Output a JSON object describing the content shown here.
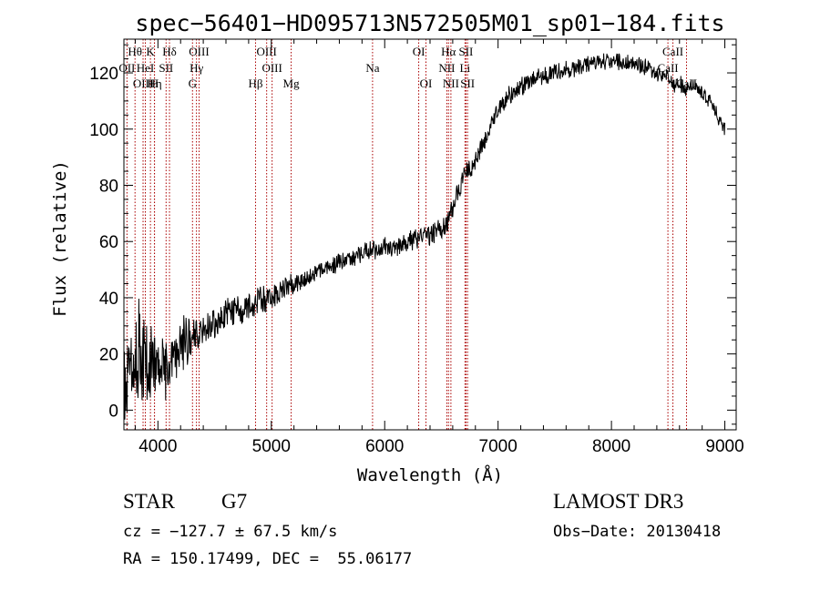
{
  "chart_data": {
    "type": "line",
    "title": "spec−56401−HD095713N572505M01_sp01−184.fits",
    "xlabel": "Wavelength (Å)",
    "ylabel": "Flux (relative)",
    "xlim": [
      3700,
      9100
    ],
    "ylim": [
      -7,
      132
    ],
    "xticks": [
      4000,
      5000,
      6000,
      7000,
      8000,
      9000
    ],
    "yticks": [
      0,
      20,
      40,
      60,
      80,
      100,
      120
    ],
    "grid": false,
    "line_color": "#000000",
    "marker_color": "#aa0000",
    "spectrum_anchors": {
      "wavelength": [
        3700,
        3800,
        3900,
        4000,
        4100,
        4200,
        4300,
        4400,
        4500,
        4600,
        4700,
        4800,
        4900,
        5000,
        5100,
        5200,
        5300,
        5400,
        5500,
        5600,
        5700,
        5800,
        5900,
        6000,
        6100,
        6200,
        6300,
        6400,
        6500,
        6550,
        6600,
        6650,
        6700,
        6750,
        6800,
        6850,
        6900,
        6950,
        7000,
        7100,
        7200,
        7300,
        7400,
        7500,
        7600,
        7700,
        7800,
        7900,
        8000,
        8100,
        8200,
        8300,
        8400,
        8500,
        8550,
        8600,
        8650,
        8700,
        8800,
        8900,
        8950,
        9000
      ],
      "flux": [
        12,
        22,
        18,
        15,
        16,
        22,
        26,
        30,
        32,
        34,
        35,
        37,
        39,
        40,
        42,
        45,
        47,
        49,
        51,
        53,
        54,
        56,
        57,
        58,
        58,
        60,
        61,
        63,
        64,
        67,
        72,
        78,
        83,
        86,
        89,
        93,
        97,
        102,
        107,
        112,
        115,
        117,
        119,
        120,
        121,
        122,
        123,
        124,
        124,
        124,
        123,
        122,
        120,
        119,
        115,
        117,
        113,
        116,
        113,
        108,
        103,
        100
      ]
    },
    "noise_amplitude": {
      "wavelength": [
        3700,
        3900,
        4100,
        4300,
        4600,
        5000,
        5500,
        6000,
        6500,
        6600,
        7000,
        8000,
        9000
      ],
      "amp": [
        14,
        15,
        10,
        8,
        5,
        4,
        3,
        3,
        4,
        3,
        3,
        2.5,
        2.5
      ]
    },
    "spectral_lines": [
      {
        "name": "Hθ",
        "wavelength": 3798,
        "row": 0
      },
      {
        "name": "OII",
        "wavelength": 3727,
        "row": 1
      },
      {
        "name": "OIII",
        "wavelength": 3869,
        "row": 2
      },
      {
        "name": "HeI",
        "wavelength": 3889,
        "row": 1
      },
      {
        "name": "K",
        "wavelength": 3934,
        "row": 0
      },
      {
        "name": "Hη",
        "wavelength": 3970,
        "row": 2
      },
      {
        "name": "SII",
        "wavelength": 4072,
        "row": 1
      },
      {
        "name": "H",
        "wavelength": 3969,
        "row": 2
      },
      {
        "name": "Hδ",
        "wavelength": 4102,
        "row": 0
      },
      {
        "name": "OIII",
        "wavelength": 4363,
        "row": 0
      },
      {
        "name": "Hγ",
        "wavelength": 4340,
        "row": 1
      },
      {
        "name": "G",
        "wavelength": 4305,
        "row": 2
      },
      {
        "name": "Hβ",
        "wavelength": 4861,
        "row": 2
      },
      {
        "name": "OIII",
        "wavelength": 4959,
        "row": 0
      },
      {
        "name": "OIII",
        "wavelength": 5007,
        "row": 1
      },
      {
        "name": "Mg",
        "wavelength": 5175,
        "row": 2
      },
      {
        "name": "Na",
        "wavelength": 5893,
        "row": 1
      },
      {
        "name": "OI",
        "wavelength": 6300,
        "row": 0
      },
      {
        "name": "OI",
        "wavelength": 6364,
        "row": 2
      },
      {
        "name": "Hα",
        "wavelength": 6563,
        "row": 0
      },
      {
        "name": "NII",
        "wavelength": 6548,
        "row": 1
      },
      {
        "name": "NII",
        "wavelength": 6584,
        "row": 2
      },
      {
        "name": "SII",
        "wavelength": 6717,
        "row": 0
      },
      {
        "name": "Li",
        "wavelength": 6708,
        "row": 1
      },
      {
        "name": "SII",
        "wavelength": 6731,
        "row": 2
      },
      {
        "name": "CaII",
        "wavelength": 8542,
        "row": 0
      },
      {
        "name": "CaII",
        "wavelength": 8498,
        "row": 1
      },
      {
        "name": "CaII",
        "wavelength": 8662,
        "row": 2
      }
    ]
  },
  "info": {
    "object_class": "STAR",
    "subclass": "G7",
    "redshift": "cz = −127.7 ± 67.5 km/s",
    "coordinates": "RA = 150.17499, DEC =  55.06177",
    "survey": "LAMOST DR3",
    "obs_date": "Obs−Date: 20130418"
  }
}
